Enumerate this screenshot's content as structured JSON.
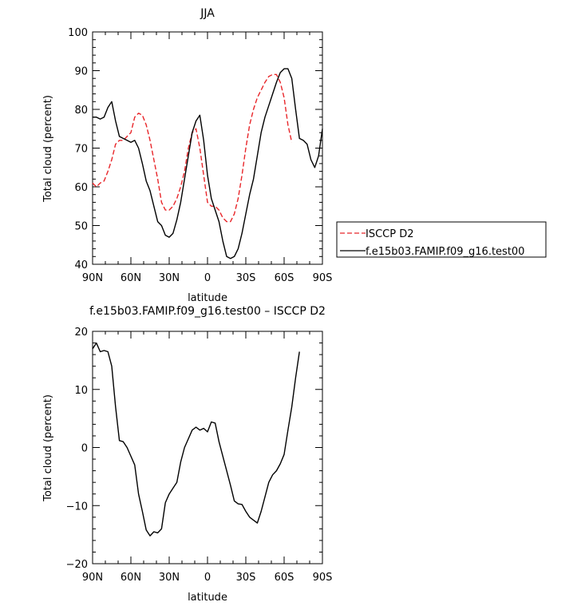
{
  "chart_data": [
    {
      "type": "line",
      "title": "JJA",
      "xlabel": "latitude",
      "ylabel": "Total cloud (percent)",
      "xlim": [
        90,
        -90
      ],
      "ylim": [
        40,
        100
      ],
      "xticks": [
        90,
        60,
        30,
        0,
        -30,
        -60,
        -90
      ],
      "xticklabels": [
        "90N",
        "60N",
        "30N",
        "0",
        "30S",
        "60S",
        "90S"
      ],
      "yticks": [
        40,
        50,
        60,
        70,
        80,
        90,
        100
      ],
      "yticklabels": [
        "40",
        "50",
        "60",
        "70",
        "80",
        "90",
        "100"
      ],
      "legend": {
        "placement": "right",
        "entries": [
          "ISCCP D2",
          "f.e15b03.FAMIP.f09_g16.test00"
        ]
      },
      "series": [
        {
          "name": "ISCCP D2",
          "color": "#e8262a",
          "dash": "dashed",
          "points": [
            [
              90,
              61
            ],
            [
              87,
              60
            ],
            [
              84,
              61
            ],
            [
              81,
              61.5
            ],
            [
              78,
              64
            ],
            [
              75,
              67
            ],
            [
              72,
              71
            ],
            [
              69,
              72
            ],
            [
              66,
              72
            ],
            [
              63,
              73
            ],
            [
              60,
              74
            ],
            [
              57,
              78
            ],
            [
              54,
              79
            ],
            [
              51,
              78.5
            ],
            [
              48,
              76
            ],
            [
              45,
              72
            ],
            [
              42,
              67
            ],
            [
              39,
              62
            ],
            [
              36,
              56
            ],
            [
              33,
              54
            ],
            [
              30,
              54
            ],
            [
              27,
              55
            ],
            [
              24,
              57
            ],
            [
              21,
              60
            ],
            [
              18,
              64
            ],
            [
              15,
              70
            ],
            [
              12,
              74
            ],
            [
              9,
              75
            ],
            [
              6,
              70
            ],
            [
              3,
              63
            ],
            [
              0,
              56
            ],
            [
              -3,
              55
            ],
            [
              -6,
              55
            ],
            [
              -9,
              54
            ],
            [
              -12,
              52
            ],
            [
              -15,
              51
            ],
            [
              -18,
              51
            ],
            [
              -21,
              53
            ],
            [
              -24,
              57
            ],
            [
              -27,
              63
            ],
            [
              -30,
              70
            ],
            [
              -33,
              76
            ],
            [
              -36,
              80
            ],
            [
              -39,
              83
            ],
            [
              -42,
              85
            ],
            [
              -45,
              87
            ],
            [
              -48,
              88.5
            ],
            [
              -51,
              89
            ],
            [
              -54,
              89
            ],
            [
              -57,
              87
            ],
            [
              -60,
              83
            ],
            [
              -63,
              76
            ],
            [
              -66,
              71.5
            ]
          ]
        },
        {
          "name": "f.e15b03.FAMIP.f09_g16.test00",
          "color": "#000000",
          "dash": "solid",
          "points": [
            [
              90,
              78
            ],
            [
              87,
              78
            ],
            [
              84,
              77.5
            ],
            [
              81,
              78
            ],
            [
              78,
              80.5
            ],
            [
              75,
              82
            ],
            [
              72,
              77
            ],
            [
              69,
              73
            ],
            [
              66,
              72.5
            ],
            [
              63,
              72
            ],
            [
              60,
              71.5
            ],
            [
              57,
              72
            ],
            [
              54,
              70
            ],
            [
              51,
              66
            ],
            [
              48,
              61.5
            ],
            [
              45,
              59
            ],
            [
              42,
              55
            ],
            [
              39,
              51
            ],
            [
              36,
              50
            ],
            [
              33,
              47.5
            ],
            [
              30,
              47
            ],
            [
              27,
              48
            ],
            [
              24,
              51.5
            ],
            [
              21,
              56
            ],
            [
              18,
              62
            ],
            [
              15,
              68
            ],
            [
              12,
              74
            ],
            [
              9,
              77
            ],
            [
              6,
              78.5
            ],
            [
              3,
              72
            ],
            [
              0,
              63
            ],
            [
              -3,
              57
            ],
            [
              -6,
              54
            ],
            [
              -9,
              51
            ],
            [
              -12,
              46
            ],
            [
              -15,
              42
            ],
            [
              -18,
              41.5
            ],
            [
              -21,
              42
            ],
            [
              -24,
              44
            ],
            [
              -27,
              48
            ],
            [
              -30,
              53
            ],
            [
              -33,
              58
            ],
            [
              -36,
              62
            ],
            [
              -39,
              68
            ],
            [
              -42,
              74
            ],
            [
              -45,
              78
            ],
            [
              -48,
              81
            ],
            [
              -51,
              84
            ],
            [
              -54,
              87
            ],
            [
              -57,
              89.5
            ],
            [
              -60,
              90.5
            ],
            [
              -63,
              90.5
            ],
            [
              -66,
              88
            ],
            [
              -69,
              80
            ],
            [
              -72,
              72.5
            ],
            [
              -75,
              72
            ],
            [
              -78,
              71
            ],
            [
              -81,
              67
            ],
            [
              -84,
              65
            ],
            [
              -87,
              68
            ],
            [
              -90,
              75
            ]
          ]
        }
      ]
    },
    {
      "type": "line",
      "title": "f.e15b03.FAMIP.f09_g16.test00 – ISCCP D2",
      "xlabel": "latitude",
      "ylabel": "Total cloud (percent)",
      "xlim": [
        90,
        -90
      ],
      "ylim": [
        -20,
        20
      ],
      "xticks": [
        90,
        60,
        30,
        0,
        -30,
        -60,
        -90
      ],
      "xticklabels": [
        "90N",
        "60N",
        "30N",
        "0",
        "30S",
        "60S",
        "90S"
      ],
      "yticks": [
        -20,
        -10,
        0,
        10,
        20
      ],
      "yticklabels": [
        "−20",
        "−10",
        "0",
        "10",
        "20"
      ],
      "series": [
        {
          "color": "#000000",
          "dash": "solid",
          "points": [
            [
              90,
              17
            ],
            [
              87,
              18
            ],
            [
              84,
              16.5
            ],
            [
              81,
              16.7
            ],
            [
              78,
              16.5
            ],
            [
              75,
              14
            ],
            [
              72,
              7
            ],
            [
              69,
              1.2
            ],
            [
              66,
              1
            ],
            [
              63,
              0
            ],
            [
              60,
              -1.5
            ],
            [
              57,
              -3
            ],
            [
              54,
              -8
            ],
            [
              51,
              -11
            ],
            [
              48,
              -14.2
            ],
            [
              45,
              -15.2
            ],
            [
              42,
              -14.5
            ],
            [
              39,
              -14.7
            ],
            [
              36,
              -14
            ],
            [
              33,
              -9.5
            ],
            [
              30,
              -8
            ],
            [
              27,
              -7
            ],
            [
              24,
              -6
            ],
            [
              21,
              -2.5
            ],
            [
              18,
              0
            ],
            [
              15,
              1.5
            ],
            [
              12,
              3
            ],
            [
              9,
              3.5
            ],
            [
              6,
              3
            ],
            [
              3,
              3.3
            ],
            [
              0,
              2.7
            ],
            [
              -3,
              4.4
            ],
            [
              -6,
              4.2
            ],
            [
              -9,
              1
            ],
            [
              -12,
              -1.5
            ],
            [
              -15,
              -4
            ],
            [
              -18,
              -6.5
            ],
            [
              -21,
              -9.2
            ],
            [
              -24,
              -9.7
            ],
            [
              -27,
              -9.8
            ],
            [
              -30,
              -11
            ],
            [
              -33,
              -12
            ],
            [
              -36,
              -12.5
            ],
            [
              -39,
              -13
            ],
            [
              -42,
              -11
            ],
            [
              -45,
              -8.5
            ],
            [
              -48,
              -6
            ],
            [
              -51,
              -4.7
            ],
            [
              -54,
              -4
            ],
            [
              -57,
              -2.8
            ],
            [
              -60,
              -1.2
            ],
            [
              -63,
              3
            ],
            [
              -66,
              7
            ],
            [
              -69,
              12
            ],
            [
              -72,
              16.5
            ]
          ]
        }
      ]
    }
  ]
}
